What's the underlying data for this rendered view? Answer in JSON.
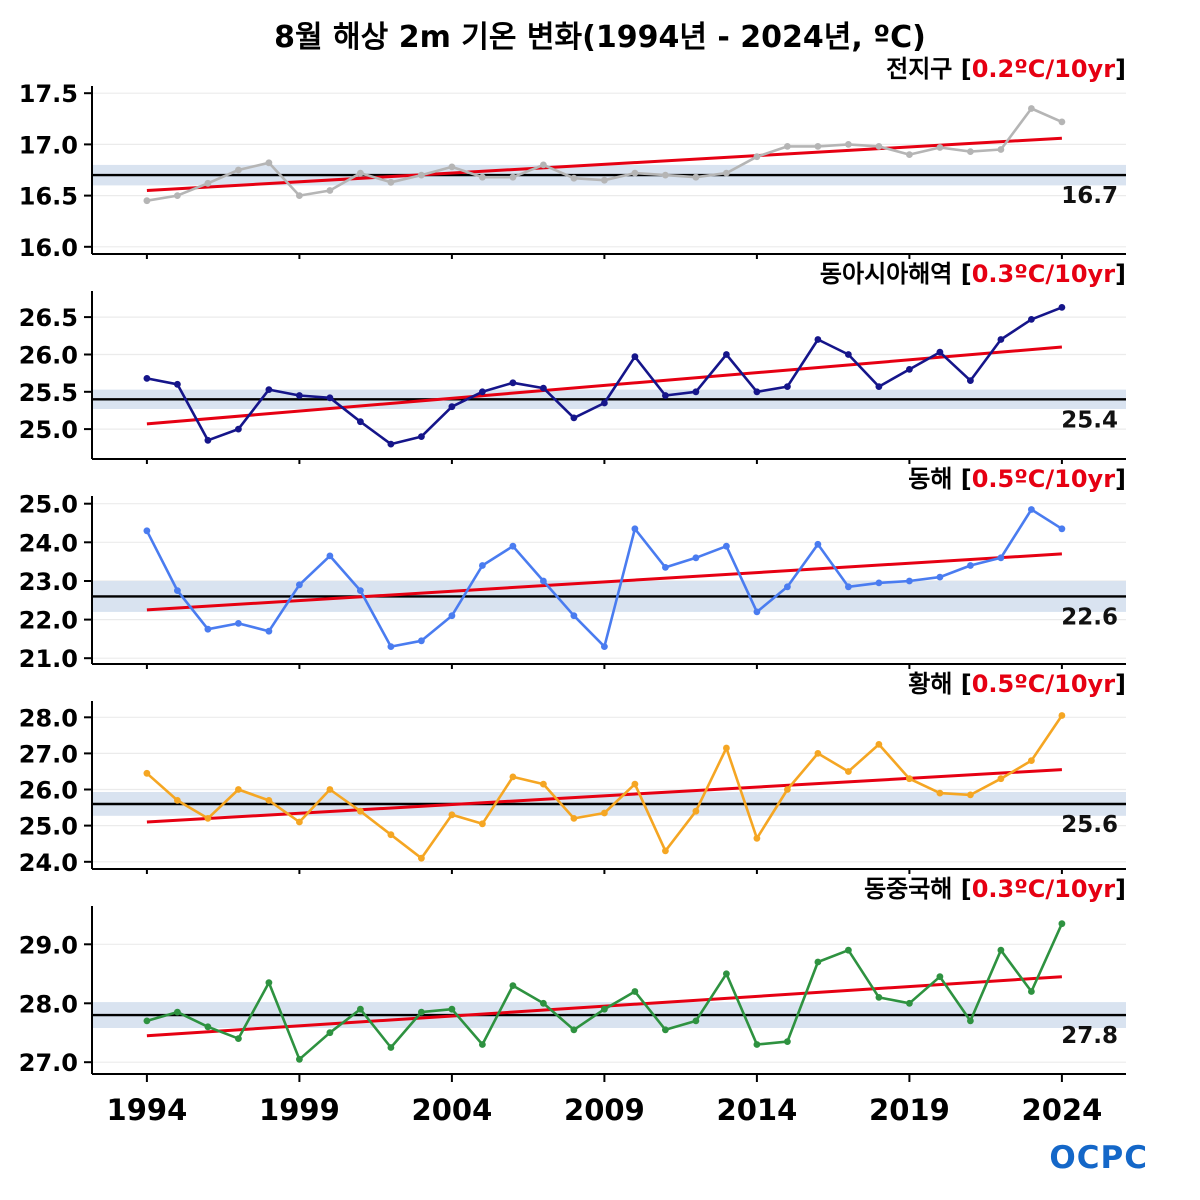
{
  "title": "8월 해상 2m 기온 변화(1994년 - 2024년, ºC)",
  "logo_text": "OCPC",
  "colors": {
    "trend": "#e60012",
    "mean_line": "#000000",
    "band": "#d9e3f0",
    "grid": "#ebebeb"
  },
  "x_axis": {
    "range": [
      1992.2,
      2026.1
    ],
    "tick_years": [
      1994,
      1999,
      2004,
      2009,
      2014,
      2019,
      2024
    ],
    "tick_labels": [
      "1994",
      "1999",
      "2004",
      "2009",
      "2014",
      "2019",
      "2024"
    ],
    "years": [
      1994,
      1995,
      1996,
      1997,
      1998,
      1999,
      2000,
      2001,
      2002,
      2003,
      2004,
      2005,
      2006,
      2007,
      2008,
      2009,
      2010,
      2011,
      2012,
      2013,
      2014,
      2015,
      2016,
      2017,
      2018,
      2019,
      2020,
      2021,
      2022,
      2023,
      2024
    ]
  },
  "chart_data": [
    {
      "type": "line",
      "id": "global",
      "region": "전지구",
      "trend_label": "0.2ºC/10yr",
      "series_color": "#b5b5b5",
      "mean": 16.7,
      "mean_label": "16.7",
      "band_halfwidth": 0.1,
      "ylim": [
        15.93,
        17.57
      ],
      "yticks": [
        16.0,
        16.5,
        17.0,
        17.5
      ],
      "ytick_labels": [
        "16.0",
        "16.5",
        "17.0",
        "17.5"
      ],
      "trend_start": 16.55,
      "trend_end": 17.06,
      "values": [
        16.45,
        16.5,
        16.62,
        16.75,
        16.82,
        16.5,
        16.55,
        16.72,
        16.63,
        16.7,
        16.78,
        16.68,
        16.68,
        16.8,
        16.67,
        16.65,
        16.72,
        16.7,
        16.68,
        16.72,
        16.88,
        16.98,
        16.98,
        17.0,
        16.98,
        16.9,
        16.97,
        16.93,
        16.95,
        17.35,
        17.22
      ]
    },
    {
      "type": "line",
      "id": "east-asia-seas",
      "region": "동아시아해역",
      "trend_label": "0.3ºC/10yr",
      "series_color": "#15158a",
      "mean": 25.4,
      "mean_label": "25.4",
      "band_halfwidth": 0.13,
      "ylim": [
        24.6,
        26.85
      ],
      "yticks": [
        25.0,
        25.5,
        26.0,
        26.5
      ],
      "ytick_labels": [
        "25.0",
        "25.5",
        "26.0",
        "26.5"
      ],
      "trend_start": 25.07,
      "trend_end": 26.1,
      "values": [
        25.68,
        25.6,
        24.85,
        25.0,
        25.53,
        25.45,
        25.42,
        25.1,
        24.8,
        24.9,
        25.3,
        25.5,
        25.62,
        25.55,
        25.15,
        25.35,
        25.97,
        25.45,
        25.5,
        26.0,
        25.5,
        25.57,
        26.2,
        26.0,
        25.57,
        25.8,
        26.03,
        25.65,
        26.2,
        26.47,
        26.63
      ]
    },
    {
      "type": "line",
      "id": "east-sea",
      "region": "동해",
      "trend_label": "0.5ºC/10yr",
      "series_color": "#4a7cf0",
      "mean": 22.6,
      "mean_label": "22.6",
      "band_halfwidth": 0.4,
      "ylim": [
        20.85,
        25.2
      ],
      "yticks": [
        21.0,
        22.0,
        23.0,
        24.0,
        25.0
      ],
      "ytick_labels": [
        "21.0",
        "22.0",
        "23.0",
        "24.0",
        "25.0"
      ],
      "trend_start": 22.25,
      "trend_end": 23.7,
      "values": [
        24.3,
        22.75,
        21.75,
        21.9,
        21.7,
        22.9,
        23.65,
        22.75,
        21.3,
        21.45,
        22.1,
        23.4,
        23.9,
        23.0,
        22.1,
        21.3,
        24.35,
        23.35,
        23.6,
        23.9,
        22.2,
        22.85,
        23.95,
        22.85,
        22.95,
        23.0,
        23.1,
        23.4,
        23.6,
        24.85,
        24.35
      ]
    },
    {
      "type": "line",
      "id": "yellow-sea",
      "region": "황해",
      "trend_label": "0.5ºC/10yr",
      "series_color": "#f5a623",
      "mean": 25.6,
      "mean_label": "25.6",
      "band_halfwidth": 0.33,
      "ylim": [
        23.8,
        28.45
      ],
      "yticks": [
        24.0,
        25.0,
        26.0,
        27.0,
        28.0
      ],
      "ytick_labels": [
        "24.0",
        "25.0",
        "26.0",
        "27.0",
        "28.0"
      ],
      "trend_start": 25.1,
      "trend_end": 26.55,
      "values": [
        26.45,
        25.7,
        25.2,
        26.0,
        25.7,
        25.1,
        26.0,
        25.4,
        24.75,
        24.1,
        25.3,
        25.05,
        26.35,
        26.15,
        25.2,
        25.35,
        26.15,
        24.3,
        25.4,
        27.15,
        24.65,
        26.0,
        27.0,
        26.5,
        27.25,
        26.3,
        25.9,
        25.85,
        26.3,
        26.8,
        28.05
      ]
    },
    {
      "type": "line",
      "id": "east-china-sea",
      "region": "동중국해",
      "trend_label": "0.3ºC/10yr",
      "series_color": "#2e9240",
      "mean": 27.8,
      "mean_label": "27.8",
      "band_halfwidth": 0.22,
      "ylim": [
        26.8,
        29.65
      ],
      "yticks": [
        27.0,
        28.0,
        29.0
      ],
      "ytick_labels": [
        "27.0",
        "28.0",
        "29.0"
      ],
      "trend_start": 27.45,
      "trend_end": 28.45,
      "values": [
        27.7,
        27.85,
        27.6,
        27.4,
        28.35,
        27.05,
        27.5,
        27.9,
        27.25,
        27.85,
        27.9,
        27.3,
        28.3,
        28.0,
        27.55,
        27.9,
        28.2,
        27.55,
        27.7,
        28.5,
        27.3,
        27.35,
        28.7,
        28.9,
        28.1,
        28.0,
        28.45,
        27.7,
        28.9,
        28.2,
        29.35
      ]
    }
  ]
}
